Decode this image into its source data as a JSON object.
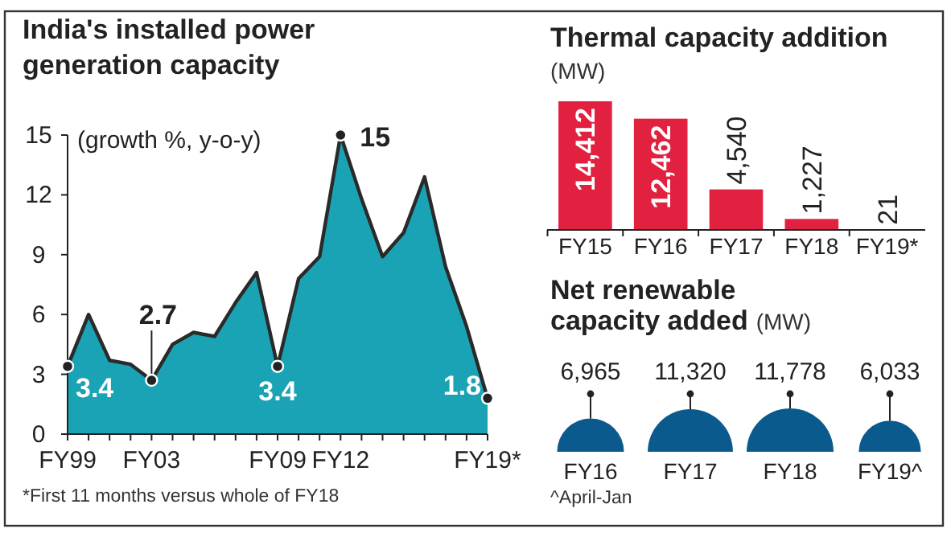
{
  "chart_data": [
    {
      "type": "area",
      "title": "India's installed power generation capacity",
      "subtitle": "(growth %, y-o-y)",
      "categories": [
        "FY99",
        null,
        null,
        null,
        "FY03",
        null,
        null,
        null,
        null,
        null,
        "FY09",
        null,
        null,
        "FY12",
        null,
        null,
        null,
        null,
        null,
        null,
        "FY19*"
      ],
      "values": [
        3.4,
        6.0,
        3.7,
        3.5,
        2.7,
        4.5,
        5.1,
        4.9,
        6.6,
        8.1,
        3.4,
        7.8,
        8.9,
        15,
        11.8,
        8.9,
        10.1,
        12.9,
        8.4,
        5.4,
        1.8
      ],
      "value_labels": [
        "3.4",
        null,
        null,
        null,
        "2.7",
        null,
        null,
        null,
        null,
        null,
        "3.4",
        null,
        null,
        "15",
        null,
        null,
        null,
        null,
        null,
        null,
        "1.8"
      ],
      "color": "#1aa3b4",
      "ylim": [
        0,
        15
      ],
      "yticks": [
        0,
        3,
        6,
        9,
        12,
        15
      ],
      "grid": false,
      "annotations": [
        "*First 11 months versus whole of FY18"
      ]
    },
    {
      "type": "bar",
      "title": "Thermal capacity addition",
      "subtitle": "(MW)",
      "categories": [
        "FY15",
        "FY16",
        "FY17",
        "FY18",
        "FY19*"
      ],
      "values": [
        14412,
        12462,
        4540,
        1227,
        21
      ],
      "value_labels": [
        "14,412",
        "12,462",
        "4,540",
        "1,227",
        "21"
      ],
      "color": "#e2203f"
    },
    {
      "type": "other",
      "title": "Net renewable capacity added",
      "subtitle": "(MW)",
      "categories": [
        "FY16",
        "FY17",
        "FY18",
        "FY19^"
      ],
      "values": [
        6965,
        11320,
        11778,
        6033
      ],
      "value_labels": [
        "6,965",
        "11,320",
        "11,778",
        "6,033"
      ],
      "color": "#0b5a8e",
      "annotations": [
        "^April-Jan"
      ]
    }
  ]
}
